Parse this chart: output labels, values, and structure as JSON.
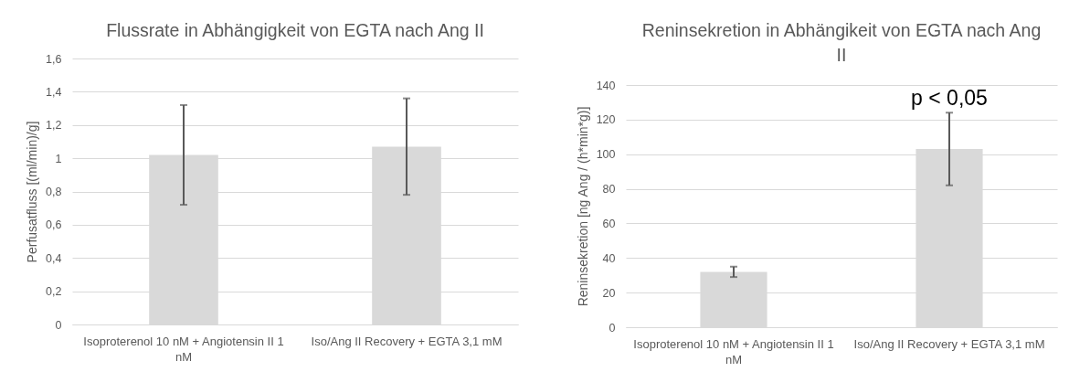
{
  "chart_data": [
    {
      "type": "bar",
      "title": "Flussrate in Abhängigkeit von EGTA nach Ang II",
      "ylabel": "Perfusatfluss [(ml/min)/g]",
      "categories": [
        "Isoproterenol 10 nM + Angiotensin II 1 nM",
        "Iso/Ang II Recovery + EGTA 3,1 mM"
      ],
      "values": [
        1.02,
        1.07
      ],
      "errors": [
        0.3,
        0.29
      ],
      "color": "#d9d9d9",
      "ylim": [
        0,
        1.6
      ],
      "yticks": [
        0,
        {
          "value": 0.2,
          "label": "0,2"
        },
        {
          "value": 0.4,
          "label": "0,4"
        },
        {
          "value": 0.6,
          "label": "0,6"
        },
        {
          "value": 0.8,
          "label": "0,8"
        },
        1,
        {
          "value": 1.2,
          "label": "1,2"
        },
        {
          "value": 1.4,
          "label": "1,4"
        },
        {
          "value": 1.6,
          "label": "1,6"
        }
      ],
      "grid": "y"
    },
    {
      "type": "bar",
      "title": "Reninsekretion in Abhängikeit von EGTA nach Ang II",
      "ylabel": "Reninsekretion [ng Ang / (h*min*g)]",
      "categories": [
        "Isoproterenol 10 nM + Angiotensin II 1 nM",
        "Iso/Ang II Recovery + EGTA 3,1 mM"
      ],
      "values": [
        32,
        103
      ],
      "errors": [
        3,
        21
      ],
      "color": "#d9d9d9",
      "ylim": [
        0,
        140
      ],
      "yticks": [
        0,
        20,
        40,
        60,
        80,
        100,
        120,
        140
      ],
      "grid": "y",
      "annotations": [
        {
          "text": "p < 0,05",
          "x": "Iso/Ang II Recovery + EGTA 3,1 mM",
          "y": 124
        }
      ]
    }
  ]
}
